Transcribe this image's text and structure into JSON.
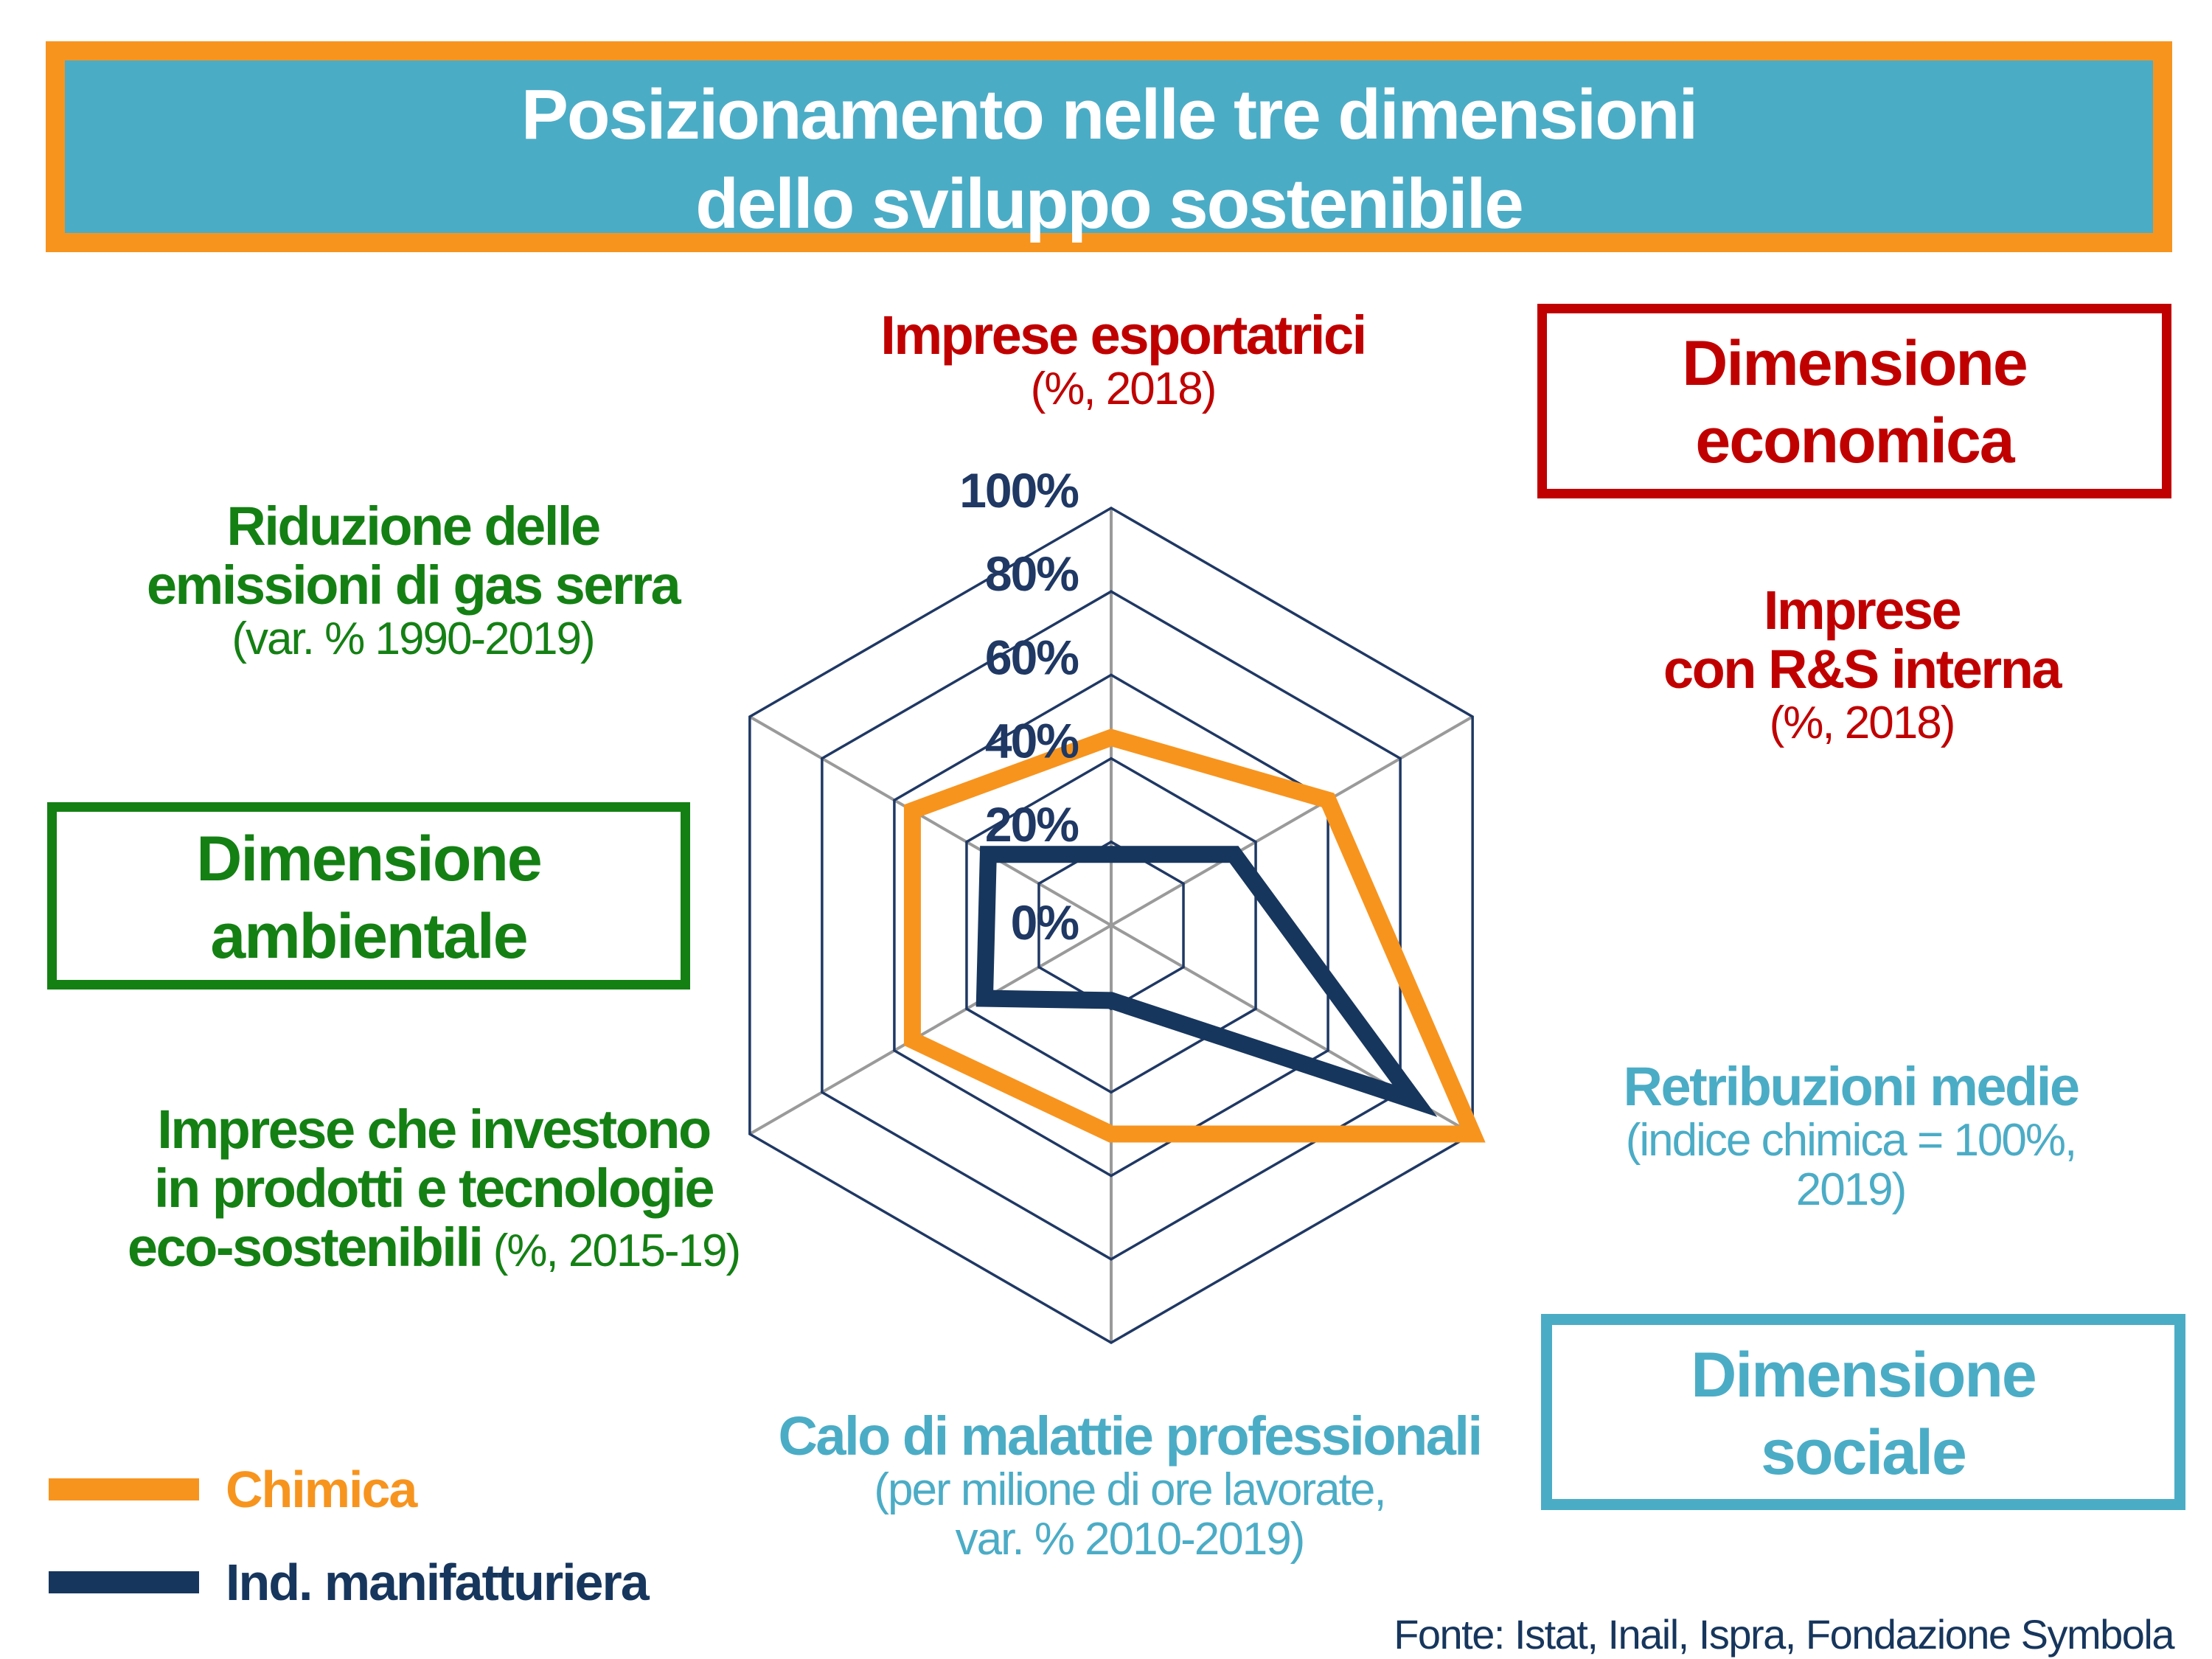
{
  "title": {
    "line1": "Posizionamento nelle tre dimensioni",
    "line2": "dello sviluppo sostenibile"
  },
  "colors": {
    "banner_fill": "#4BACC6",
    "banner_border": "#F7941E",
    "economic_red": "#C00000",
    "environment_green": "#148014",
    "social_lightblue": "#4BACC6",
    "navy_text": "#17365D",
    "grid_line_navy": "#1F3864",
    "spoke_gray": "#9A9A9A"
  },
  "boxes": {
    "economica": {
      "line1": "Dimensione",
      "line2": "economica"
    },
    "ambientale": {
      "line1": "Dimensione",
      "line2": "ambientale"
    },
    "sociale": {
      "line1": "Dimensione",
      "line2": "sociale"
    }
  },
  "chart_data": {
    "type": "radar",
    "shape": "hexagon",
    "axis_range": [
      0,
      100
    ],
    "tick_step": 20,
    "tick_labels": [
      "0%",
      "20%",
      "40%",
      "60%",
      "80%",
      "100%"
    ],
    "grid": "5 concentric hexagonal rings (20% steps), 3 gray spokes through center, tick labels left of top axis",
    "axes": [
      {
        "id": "imprese-esportatrici",
        "position": "top",
        "color": "#C00000",
        "title_lines": [
          "Imprese esportatrici"
        ],
        "subtitle_lines": [
          "(%, 2018)"
        ]
      },
      {
        "id": "imprese-con-rs-interna",
        "position": "upper-right",
        "color": "#C00000",
        "title_lines": [
          "Imprese",
          "con R&S interna"
        ],
        "subtitle_lines": [
          "(%, 2018)"
        ]
      },
      {
        "id": "retribuzioni-medie",
        "position": "lower-right",
        "color": "#4BACC6",
        "title_lines": [
          "Retribuzioni medie"
        ],
        "subtitle_lines": [
          "(indice chimica = 100%,",
          "2019)"
        ]
      },
      {
        "id": "calo-malattie-professionali",
        "position": "bottom",
        "color": "#4BACC6",
        "title_lines": [
          "Calo di malattie professionali"
        ],
        "subtitle_lines": [
          "(per milione di ore lavorate,",
          "var. % 2010-2019)"
        ]
      },
      {
        "id": "imprese-eco-sostenibili",
        "position": "lower-left",
        "color": "#148014",
        "title_lines": [
          "Imprese che investono",
          "in prodotti e tecnologie",
          "eco-sostenibili"
        ],
        "subtitle_inline": " (%, 2015-19)"
      },
      {
        "id": "riduzione-emissioni-gas-serra",
        "position": "upper-left",
        "color": "#148014",
        "title_lines": [
          "Riduzione delle",
          "emissioni di gas serra"
        ],
        "subtitle_lines": [
          "(var. % 1990-2019)"
        ]
      }
    ],
    "series": [
      {
        "name": "Chimica",
        "color": "#F7941E",
        "values": [
          45,
          60,
          100,
          50,
          55,
          55
        ]
      },
      {
        "name": "Ind. manifatturiera",
        "color": "#17365D",
        "values": [
          17,
          34,
          84,
          18,
          35,
          34
        ]
      }
    ]
  },
  "legend": {
    "items": [
      {
        "label": "Chimica",
        "color": "#F7941E"
      },
      {
        "label": "Ind. manifatturiera",
        "color": "#17365D"
      }
    ]
  },
  "source": "Fonte: Istat, Inail, Ispra, Fondazione Symbola"
}
